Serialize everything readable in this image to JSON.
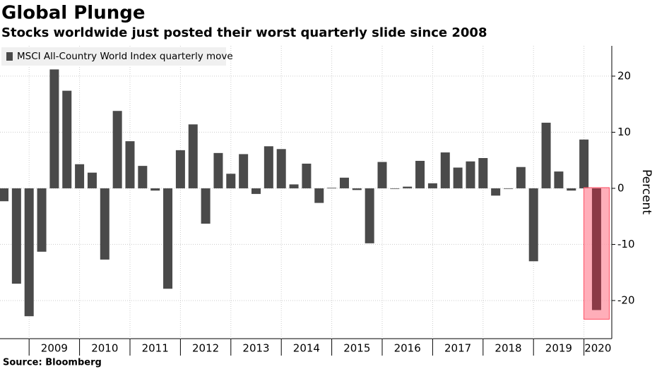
{
  "chart_data": {
    "type": "bar",
    "title": "Global Plunge",
    "subtitle": "Stocks worldwide just posted their worst quarterly slide since 2008",
    "source": "Source: Bloomberg",
    "y_axis_label": "Percent",
    "series": [
      {
        "name": "MSCI All-Country World Index quarterly move",
        "color": "#4a4a4a",
        "values": [
          -2.3,
          -17.0,
          -22.8,
          -11.3,
          21.2,
          17.4,
          4.3,
          2.8,
          -12.7,
          13.8,
          8.4,
          4.0,
          -0.4,
          -17.9,
          6.8,
          11.4,
          -6.3,
          6.3,
          2.6,
          6.1,
          -1.0,
          7.5,
          7.0,
          0.7,
          4.4,
          -2.6,
          0.1,
          1.9,
          -0.3,
          -9.8,
          4.7,
          -0.1,
          0.3,
          4.9,
          0.9,
          6.4,
          3.7,
          4.8,
          5.4,
          -1.3,
          -0.1,
          3.8,
          -13.0,
          11.7,
          3.0,
          -0.4,
          8.7,
          -21.7
        ]
      }
    ],
    "categories": [
      null,
      null,
      null,
      "2009",
      null,
      null,
      null,
      "2010",
      null,
      null,
      null,
      "2011",
      null,
      null,
      null,
      "2012",
      null,
      null,
      null,
      "2013",
      null,
      null,
      null,
      "2014",
      null,
      null,
      null,
      "2015",
      null,
      null,
      null,
      "2016",
      null,
      null,
      null,
      "2017",
      null,
      null,
      null,
      "2018",
      null,
      null,
      null,
      "2019",
      null,
      null,
      null,
      "2020"
    ],
    "highlight_color": "#8b3a46",
    "ylim": [
      -26.8,
      25.4
    ],
    "yticks": [
      -20,
      -10,
      0,
      10,
      20
    ],
    "grid": true
  }
}
